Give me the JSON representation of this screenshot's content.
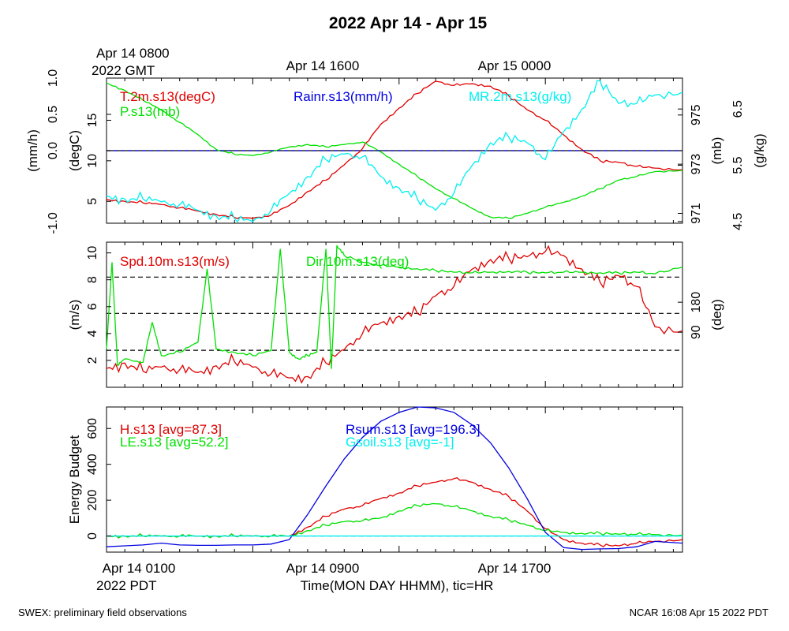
{
  "title": "2022 Apr 14 - Apr 15",
  "top_time_labels": {
    "gmt_first": "Apr 14 0800",
    "gmt_first_sub": "2022 GMT",
    "gmt_second": "Apr 14 1600",
    "gmt_third": "Apr 15 0000"
  },
  "bottom_time_labels": {
    "pdt_first": "Apr 14 0100",
    "pdt_first_sub": "2022 PDT",
    "pdt_second": "Apr 14 0900",
    "pdt_third": "Apr 14 1700",
    "xlabel": "Time(MON DAY HHMM), tic=HR"
  },
  "footer": {
    "left": "SWEX: preliminary field observations",
    "right": "NCAR 16:08 Apr 15 2022 PDT"
  },
  "colors": {
    "red": "#e00000",
    "green": "#00e000",
    "blue": "#0000e0",
    "cyan": "#00f0f0",
    "black": "#000000"
  },
  "chart_data": [
    {
      "type": "line",
      "panel": "top",
      "x_unit": "hours since Apr 14 0100 PDT",
      "xlim": [
        0,
        31.5
      ],
      "axes": {
        "left_outer": {
          "label": "(mm/h)",
          "ticks": [
            "1.0",
            "0.5",
            "0.0",
            "-1.0"
          ],
          "ylim": [
            -1.0,
            1.0
          ]
        },
        "left_inner": {
          "label": "(degC)",
          "ticks": [
            "15",
            "10",
            "5"
          ],
          "ylim": [
            2.3,
            20.2
          ]
        },
        "right_inner": {
          "label": "(mb)",
          "ticks": [
            "975",
            "973",
            "971"
          ],
          "ylim": [
            970.6,
            976.5
          ]
        },
        "right_outer": {
          "label": "(g/kg)",
          "ticks": [
            "6.5",
            "5.5",
            "4.5"
          ],
          "ylim": [
            4.47,
            7.05
          ]
        }
      },
      "legend": [
        "T.2m.s13(degC)",
        "P.s13(mb)",
        "Rainr.s13(mm/h)",
        "MR.2m.s13(g/kg)"
      ],
      "series": [
        {
          "name": "T.2m.s13(degC)",
          "axis": "left_inner",
          "color": "red",
          "x": [
            0,
            1,
            2,
            3,
            4,
            5,
            6,
            7,
            8,
            9,
            10,
            11,
            12,
            13,
            14,
            15,
            16,
            17,
            18,
            19,
            20,
            21,
            22,
            23,
            24,
            25,
            26,
            27,
            28,
            29,
            30,
            31.5
          ],
          "values": [
            5.2,
            5.0,
            4.8,
            4.6,
            4.2,
            3.8,
            3.4,
            3.0,
            2.9,
            3.3,
            4.5,
            6.2,
            7.6,
            9.5,
            11.5,
            14.5,
            16.5,
            18.3,
            19.8,
            19.3,
            19.5,
            19.2,
            18.0,
            16.3,
            15.0,
            13.2,
            11.4,
            10.0,
            9.8,
            9.3,
            9.1,
            8.9
          ]
        },
        {
          "name": "P.s13(mb)",
          "axis": "right_inner",
          "color": "green",
          "x": [
            0,
            1,
            2,
            3,
            4,
            5,
            6,
            7,
            8,
            9,
            10,
            11,
            12,
            13,
            14,
            15,
            16,
            17,
            18,
            19,
            20,
            21,
            22,
            23,
            24,
            25,
            26,
            27,
            28,
            29,
            30,
            31.5
          ],
          "values": [
            976.3,
            976.0,
            975.6,
            975.2,
            974.7,
            974.2,
            973.6,
            973.4,
            973.35,
            973.5,
            973.7,
            973.8,
            973.7,
            973.8,
            973.9,
            973.5,
            973.0,
            972.5,
            972.0,
            971.6,
            971.2,
            970.85,
            970.8,
            971.0,
            971.25,
            971.45,
            971.7,
            972.0,
            972.35,
            972.5,
            972.7,
            972.75
          ]
        },
        {
          "name": "Rainr.s13(mm/h)",
          "axis": "left_outer",
          "color": "blue",
          "x": [
            0,
            31.5
          ],
          "values": [
            0.0,
            0.0
          ]
        },
        {
          "name": "MR.2m.s13(g/kg)",
          "axis": "right_outer",
          "color": "cyan",
          "x": [
            0,
            1,
            2,
            3,
            4,
            5,
            6,
            7,
            8,
            9,
            10,
            11,
            12,
            13,
            14,
            15,
            16,
            17,
            18,
            19,
            20,
            21,
            22,
            23,
            24,
            25,
            26,
            27,
            28,
            29,
            30,
            31.5
          ],
          "values": [
            4.95,
            4.9,
            4.9,
            4.85,
            4.8,
            4.7,
            4.6,
            4.55,
            4.5,
            4.7,
            5.0,
            5.3,
            5.6,
            5.7,
            5.65,
            5.3,
            5.1,
            4.9,
            4.7,
            5.0,
            5.5,
            5.9,
            6.0,
            5.9,
            5.6,
            6.1,
            6.5,
            7.0,
            6.6,
            6.6,
            6.75,
            6.8
          ]
        }
      ]
    },
    {
      "type": "line",
      "panel": "middle",
      "x_unit": "hours since Apr 14 0100 PDT",
      "xlim": [
        0,
        31.5
      ],
      "axes": {
        "left": {
          "label": "(m/s)",
          "ticks": [
            "10",
            "8",
            "6",
            "4",
            "2"
          ],
          "ylim": [
            0,
            10.8
          ]
        },
        "right": {
          "label": "(deg)",
          "ticks": [
            "180",
            "90"
          ],
          "ylim": [
            -75,
            360
          ]
        }
      },
      "legend": [
        "Spd.10m.s13(m/s)",
        "Dir.10m.s13(deg)"
      ],
      "series": [
        {
          "name": "Spd.10m.s13(m/s)",
          "axis": "left",
          "color": "red",
          "x": [
            0,
            1,
            2,
            3,
            4,
            5,
            6,
            7,
            8,
            9,
            10,
            11,
            12,
            13,
            14,
            15,
            16,
            17,
            18,
            19,
            20,
            21,
            22,
            23,
            24,
            25,
            26,
            27,
            28,
            29,
            30,
            31.5
          ],
          "values": [
            1.4,
            1.8,
            1.2,
            1.5,
            1.3,
            1.1,
            1.6,
            1.9,
            1.5,
            1.0,
            0.7,
            0.8,
            1.8,
            2.8,
            4.0,
            4.8,
            5.3,
            5.5,
            6.8,
            7.5,
            8.8,
            9.5,
            9.6,
            9.7,
            10.1,
            9.8,
            8.8,
            7.8,
            8.3,
            7.5,
            4.5,
            4.2
          ]
        },
        {
          "name": "Dir.10m.s13(deg)",
          "axis": "right",
          "color": "green",
          "x": [
            0,
            0.3,
            0.6,
            1,
            2,
            2.5,
            3,
            4,
            5,
            5.5,
            6,
            7,
            8,
            9,
            9.5,
            10,
            10.5,
            11,
            11.5,
            12,
            12.3,
            12.6,
            13,
            14,
            15,
            16,
            17,
            18,
            19,
            20,
            21,
            22,
            23,
            24,
            25,
            26,
            27,
            28,
            29,
            30,
            31.5
          ],
          "values": [
            40,
            300,
            -10,
            10,
            0,
            120,
            20,
            30,
            60,
            280,
            40,
            30,
            20,
            35,
            340,
            30,
            10,
            20,
            30,
            340,
            -20,
            350,
            320,
            300,
            290,
            285,
            280,
            275,
            270,
            268,
            270,
            272,
            270,
            268,
            270,
            270,
            268,
            268,
            270,
            265,
            285
          ]
        }
      ]
    },
    {
      "type": "line",
      "panel": "bottom",
      "x_unit": "hours since Apr 14 0100 PDT",
      "xlim": [
        0,
        31.5
      ],
      "axes": {
        "left": {
          "label": "Energy Budget",
          "ticks": [
            "600",
            "400",
            "200",
            "0"
          ],
          "ylim": [
            -90,
            720
          ]
        }
      },
      "legend": [
        "H.s13 [avg=87.3]",
        "LE.s13 [avg=52.2]",
        "Rsum.s13 [avg=196.3]",
        "Gsoil.s13 [avg=-1]"
      ],
      "series": [
        {
          "name": "H.s13 [avg=87.3]",
          "color": "red",
          "x": [
            0,
            1,
            2,
            3,
            4,
            5,
            6,
            7,
            8,
            9,
            10,
            11,
            12,
            13,
            14,
            15,
            16,
            17,
            18,
            19,
            20,
            21,
            22,
            23,
            24,
            25,
            26,
            27,
            28,
            29,
            30,
            31.5
          ],
          "values": [
            0,
            0,
            0,
            0,
            0,
            0,
            0,
            0,
            0,
            0,
            0,
            50,
            110,
            150,
            170,
            210,
            240,
            280,
            300,
            320,
            300,
            260,
            220,
            140,
            40,
            -20,
            -40,
            -50,
            -55,
            -40,
            -30,
            -20
          ]
        },
        {
          "name": "LE.s13 [avg=52.2]",
          "color": "green",
          "x": [
            0,
            1,
            2,
            3,
            4,
            5,
            6,
            7,
            8,
            9,
            10,
            11,
            12,
            13,
            14,
            15,
            16,
            17,
            18,
            19,
            20,
            21,
            22,
            23,
            24,
            25,
            26,
            27,
            28,
            29,
            30,
            31.5
          ],
          "values": [
            0,
            0,
            0,
            0,
            0,
            0,
            0,
            0,
            0,
            0,
            0,
            30,
            60,
            80,
            85,
            100,
            140,
            170,
            180,
            165,
            140,
            110,
            90,
            60,
            30,
            20,
            15,
            15,
            10,
            10,
            8,
            5
          ]
        },
        {
          "name": "Rsum.s13 [avg=196.3]",
          "color": "blue",
          "x": [
            0,
            1,
            2,
            3,
            4,
            5,
            6,
            7,
            8,
            9,
            10,
            11,
            12,
            13,
            14,
            15,
            16,
            17,
            18,
            19,
            20,
            21,
            22,
            23,
            24,
            25,
            26,
            27,
            28,
            29,
            30,
            31.5
          ],
          "values": [
            -60,
            -55,
            -50,
            -40,
            -50,
            -52,
            -52,
            -50,
            -50,
            -45,
            -20,
            120,
            280,
            430,
            550,
            640,
            690,
            720,
            715,
            690,
            620,
            520,
            380,
            210,
            20,
            -65,
            -75,
            -72,
            -70,
            -60,
            -30,
            -40
          ]
        },
        {
          "name": "Gsoil.s13 [avg=-1]",
          "color": "cyan",
          "x": [
            0,
            31.5
          ],
          "values": [
            0,
            0
          ]
        }
      ]
    }
  ]
}
